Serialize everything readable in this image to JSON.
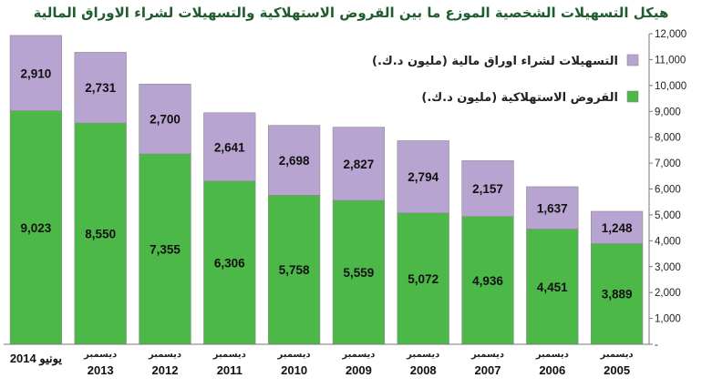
{
  "chart_data": {
    "type": "bar",
    "stacked": true,
    "title": "هيكل التسهيلات الشخصية الموزع ما بين القروض الاستهلاكية والتسهيلات لشراء الاوراق المالية",
    "categories": [
      {
        "label": "يونيو 2014",
        "month": "",
        "year": ""
      },
      {
        "label": "",
        "month": "ديسمبر",
        "year": "2013"
      },
      {
        "label": "",
        "month": "ديسمبر",
        "year": "2012"
      },
      {
        "label": "",
        "month": "ديسمبر",
        "year": "2011"
      },
      {
        "label": "",
        "month": "ديسمبر",
        "year": "2010"
      },
      {
        "label": "",
        "month": "ديسمبر",
        "year": "2009"
      },
      {
        "label": "",
        "month": "ديسمبر",
        "year": "2008"
      },
      {
        "label": "",
        "month": "ديسمبر",
        "year": "2007"
      },
      {
        "label": "",
        "month": "ديسمبر",
        "year": "2006"
      },
      {
        "label": "",
        "month": "ديسمبر",
        "year": "2005"
      }
    ],
    "series": [
      {
        "name": "القروض الاستهلاكية (مليون د.ك.)",
        "color": "#4cb848",
        "values": [
          9023,
          8550,
          7355,
          6306,
          5758,
          5559,
          5072,
          4936,
          4451,
          3889
        ],
        "labels": [
          "9,023",
          "8,550",
          "7,355",
          "6,306",
          "5,758",
          "5,559",
          "5,072",
          "4,936",
          "4,451",
          "3,889"
        ]
      },
      {
        "name": "التسهيلات لشراء اوراق مالية (مليون د.ك.)",
        "color": "#b8a4d0",
        "values": [
          2910,
          2731,
          2700,
          2641,
          2698,
          2827,
          2794,
          2157,
          1637,
          1248
        ],
        "labels": [
          "2,910",
          "2,731",
          "2,700",
          "2,641",
          "2,698",
          "2,827",
          "2,794",
          "2,157",
          "1,637",
          "1,248"
        ]
      }
    ],
    "ylim": [
      0,
      12000
    ],
    "yticks": [
      "-",
      "1,000",
      "2,000",
      "3,000",
      "4,000",
      "5,000",
      "6,000",
      "7,000",
      "8,000",
      "9,000",
      "10,000",
      "11,000",
      "12,000"
    ],
    "yaxis_position": "right",
    "legend_position": "top-right",
    "grid": false
  }
}
